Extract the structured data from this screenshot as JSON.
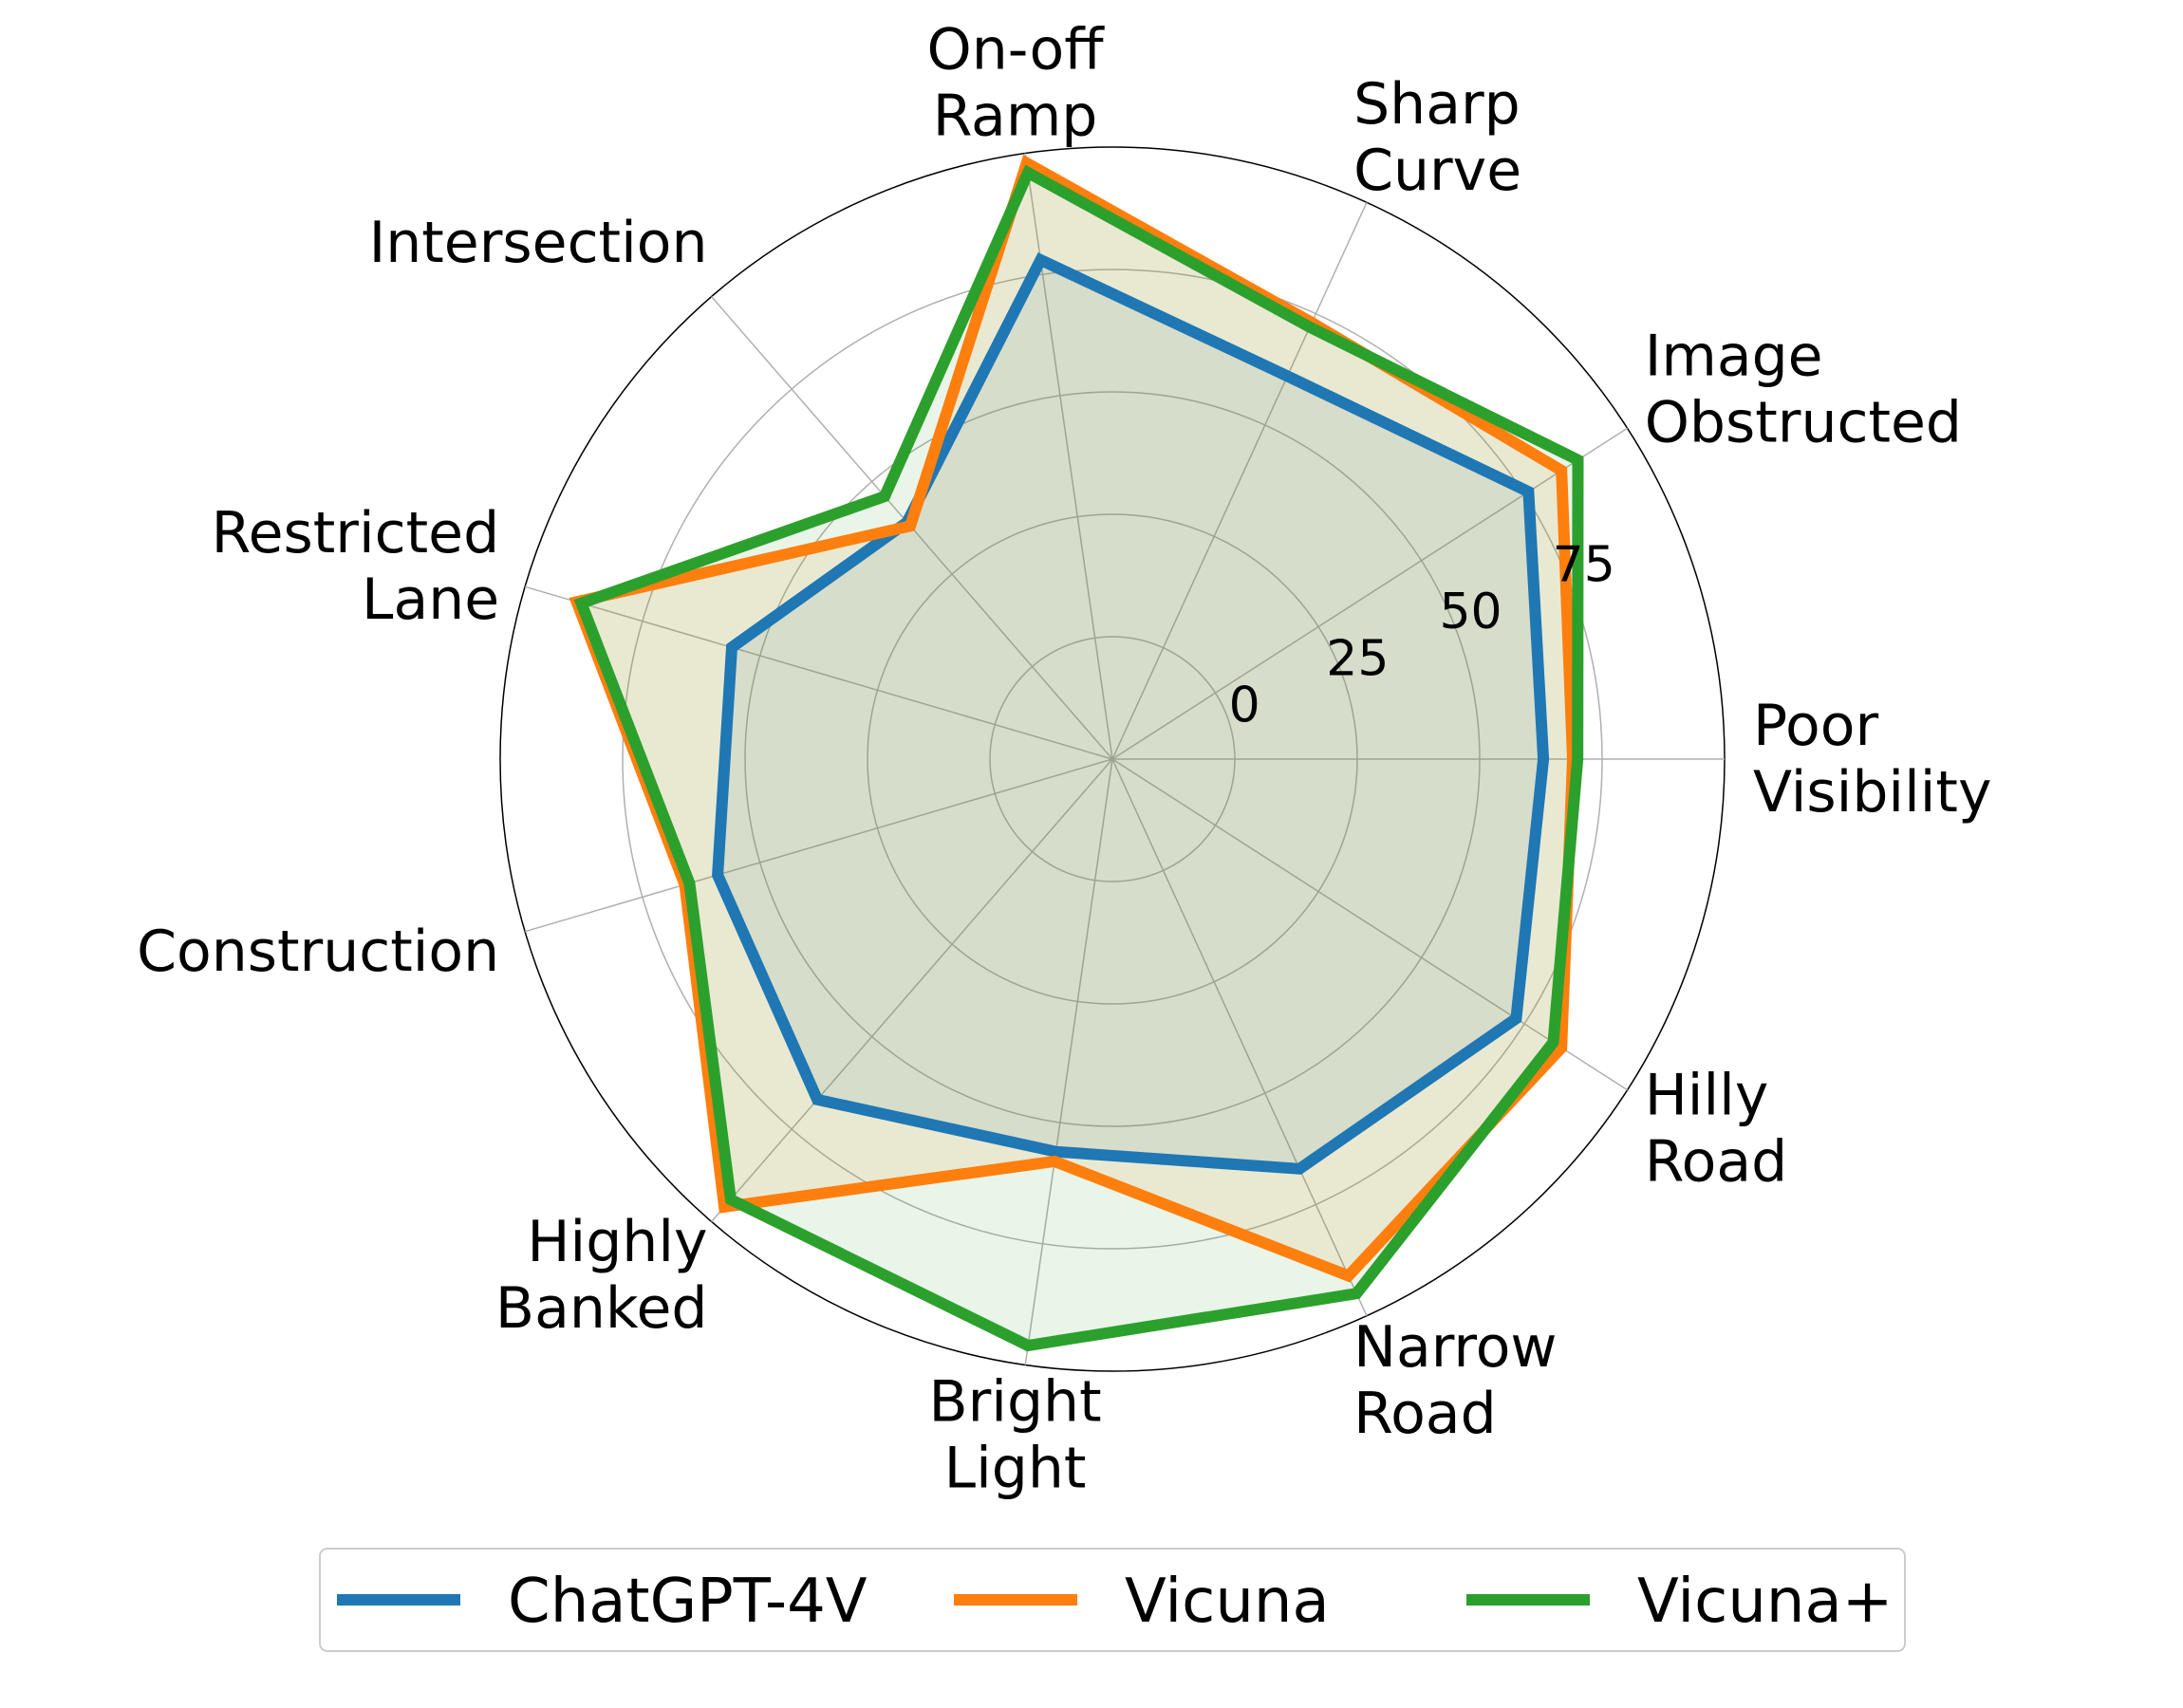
{
  "chart_data": {
    "type": "radar",
    "categories": [
      [
        "Poor",
        "Visibility"
      ],
      [
        "Image",
        "Obstructed"
      ],
      [
        "Sharp",
        "Curve"
      ],
      [
        "On-off",
        "Ramp"
      ],
      [
        "Intersection"
      ],
      [
        "Restricted",
        "Lane"
      ],
      [
        "Construction"
      ],
      [
        "Highly",
        "Banked"
      ],
      [
        "Bright",
        "Light"
      ],
      [
        "Narrow",
        "Road"
      ],
      [
        "Hilly",
        "Road"
      ]
    ],
    "r_ticks": [
      0,
      25,
      50,
      75
    ],
    "r_tick_labels": [
      "0",
      "25",
      "50",
      "75"
    ],
    "rlim": [
      -25,
      100
    ],
    "grid": true,
    "legend_position": "bottom",
    "series": [
      {
        "name": "ChatGPT-4V",
        "color": "#1f77b4",
        "values": [
          63,
          76,
          61,
          78,
          39,
          56,
          59,
          67,
          56,
          67,
          73
        ]
      },
      {
        "name": "Vicuna",
        "color": "#ff7f0e",
        "values": [
          69,
          84,
          73,
          98,
          38,
          89,
          66,
          96,
          58,
          91,
          84
        ]
      },
      {
        "name": "Vicuna+",
        "color": "#2ca02c",
        "values": [
          70,
          88,
          72,
          96,
          46,
          88,
          65,
          94,
          96,
          95,
          82
        ]
      }
    ]
  }
}
